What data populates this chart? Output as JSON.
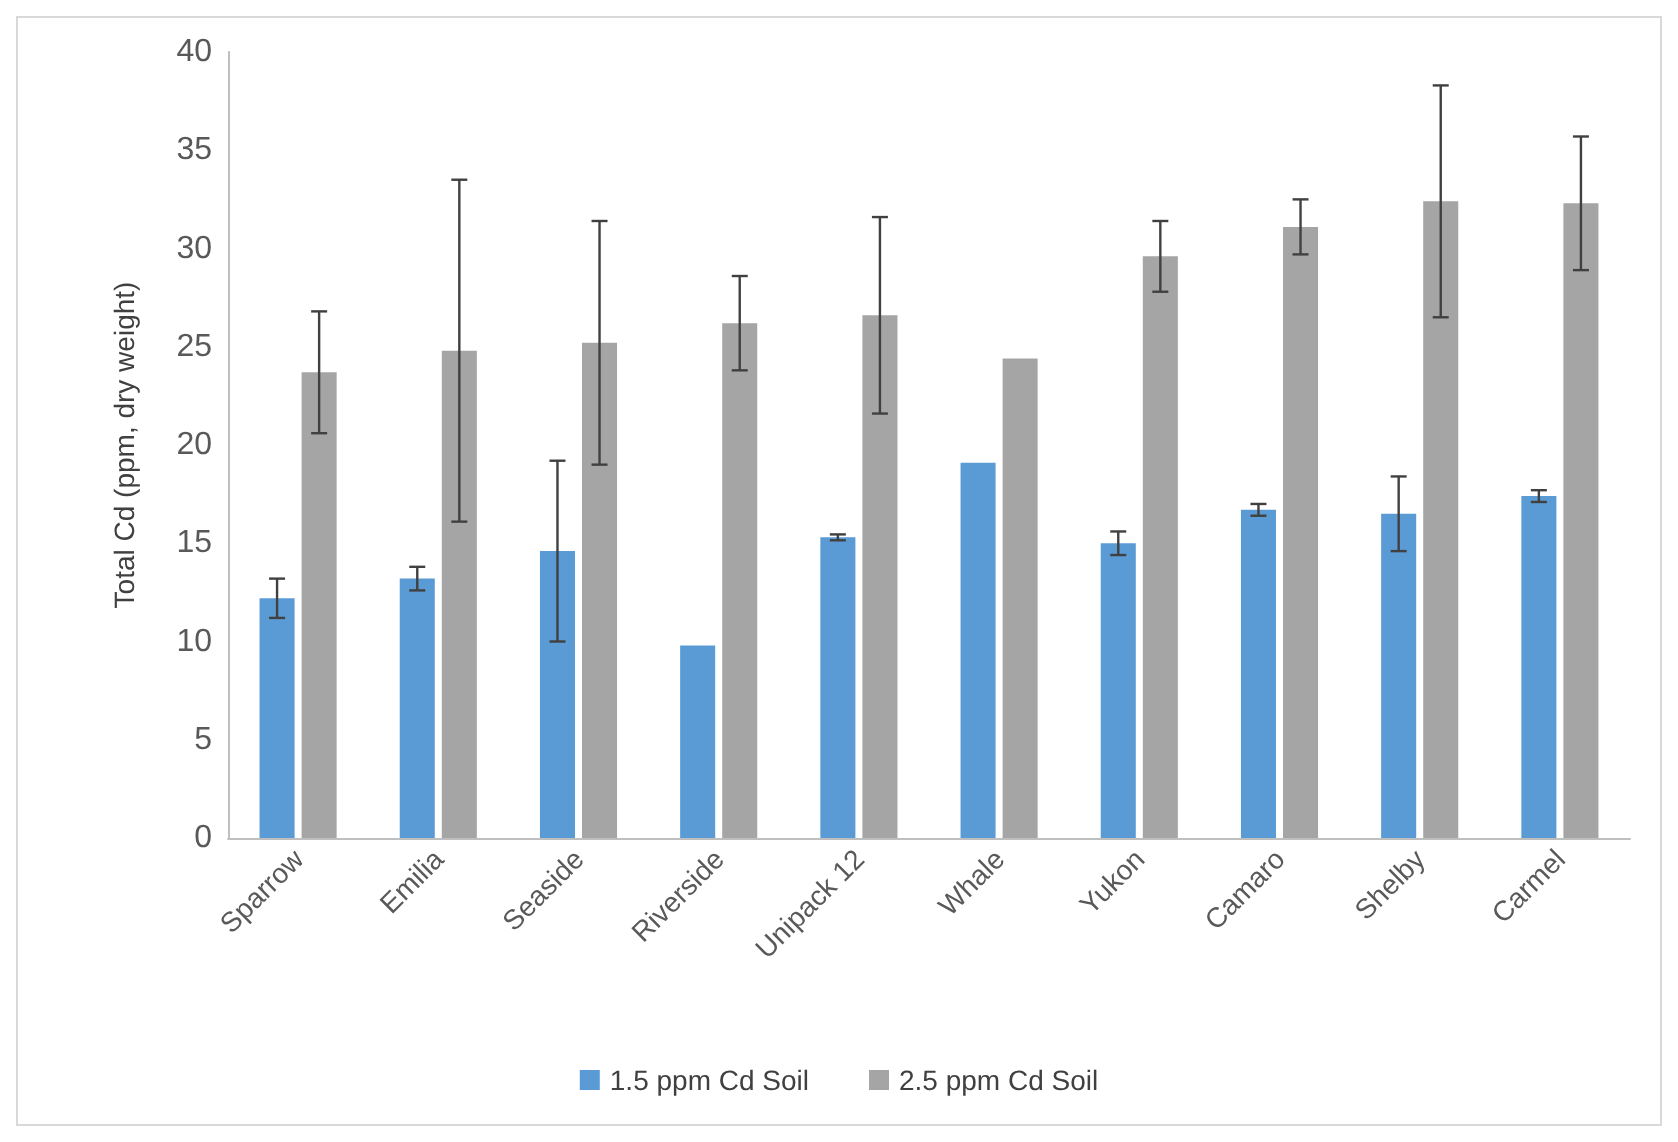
{
  "chart_data": {
    "type": "bar",
    "ylabel": "Total Cd (ppm, dry weight)",
    "categories": [
      "Sparrow",
      "Emilia",
      "Seaside",
      "Riverside",
      "Unipack 12",
      "Whale",
      "Yukon",
      "Camaro",
      "Shelby",
      "Carmel"
    ],
    "series": [
      {
        "name": "1.5 ppm Cd Soil",
        "color": "#5b9bd5",
        "values": [
          12.2,
          13.2,
          14.6,
          9.8,
          15.3,
          19.1,
          15.0,
          16.7,
          16.5,
          17.4
        ],
        "errors": [
          1.0,
          0.6,
          4.6,
          null,
          0.15,
          null,
          0.6,
          0.3,
          1.9,
          0.3
        ]
      },
      {
        "name": "2.5 ppm Cd Soil",
        "color": "#a5a5a5",
        "values": [
          23.7,
          24.8,
          25.2,
          26.2,
          26.6,
          24.4,
          29.6,
          31.1,
          32.4,
          32.3
        ],
        "errors": [
          3.1,
          8.7,
          6.2,
          2.4,
          5.0,
          null,
          1.8,
          1.4,
          5.9,
          3.4
        ]
      }
    ],
    "ylim": [
      0,
      40
    ],
    "yticks": [
      0,
      5,
      10,
      15,
      20,
      25,
      30,
      35,
      40
    ],
    "grid": false,
    "legend": "bottom"
  }
}
